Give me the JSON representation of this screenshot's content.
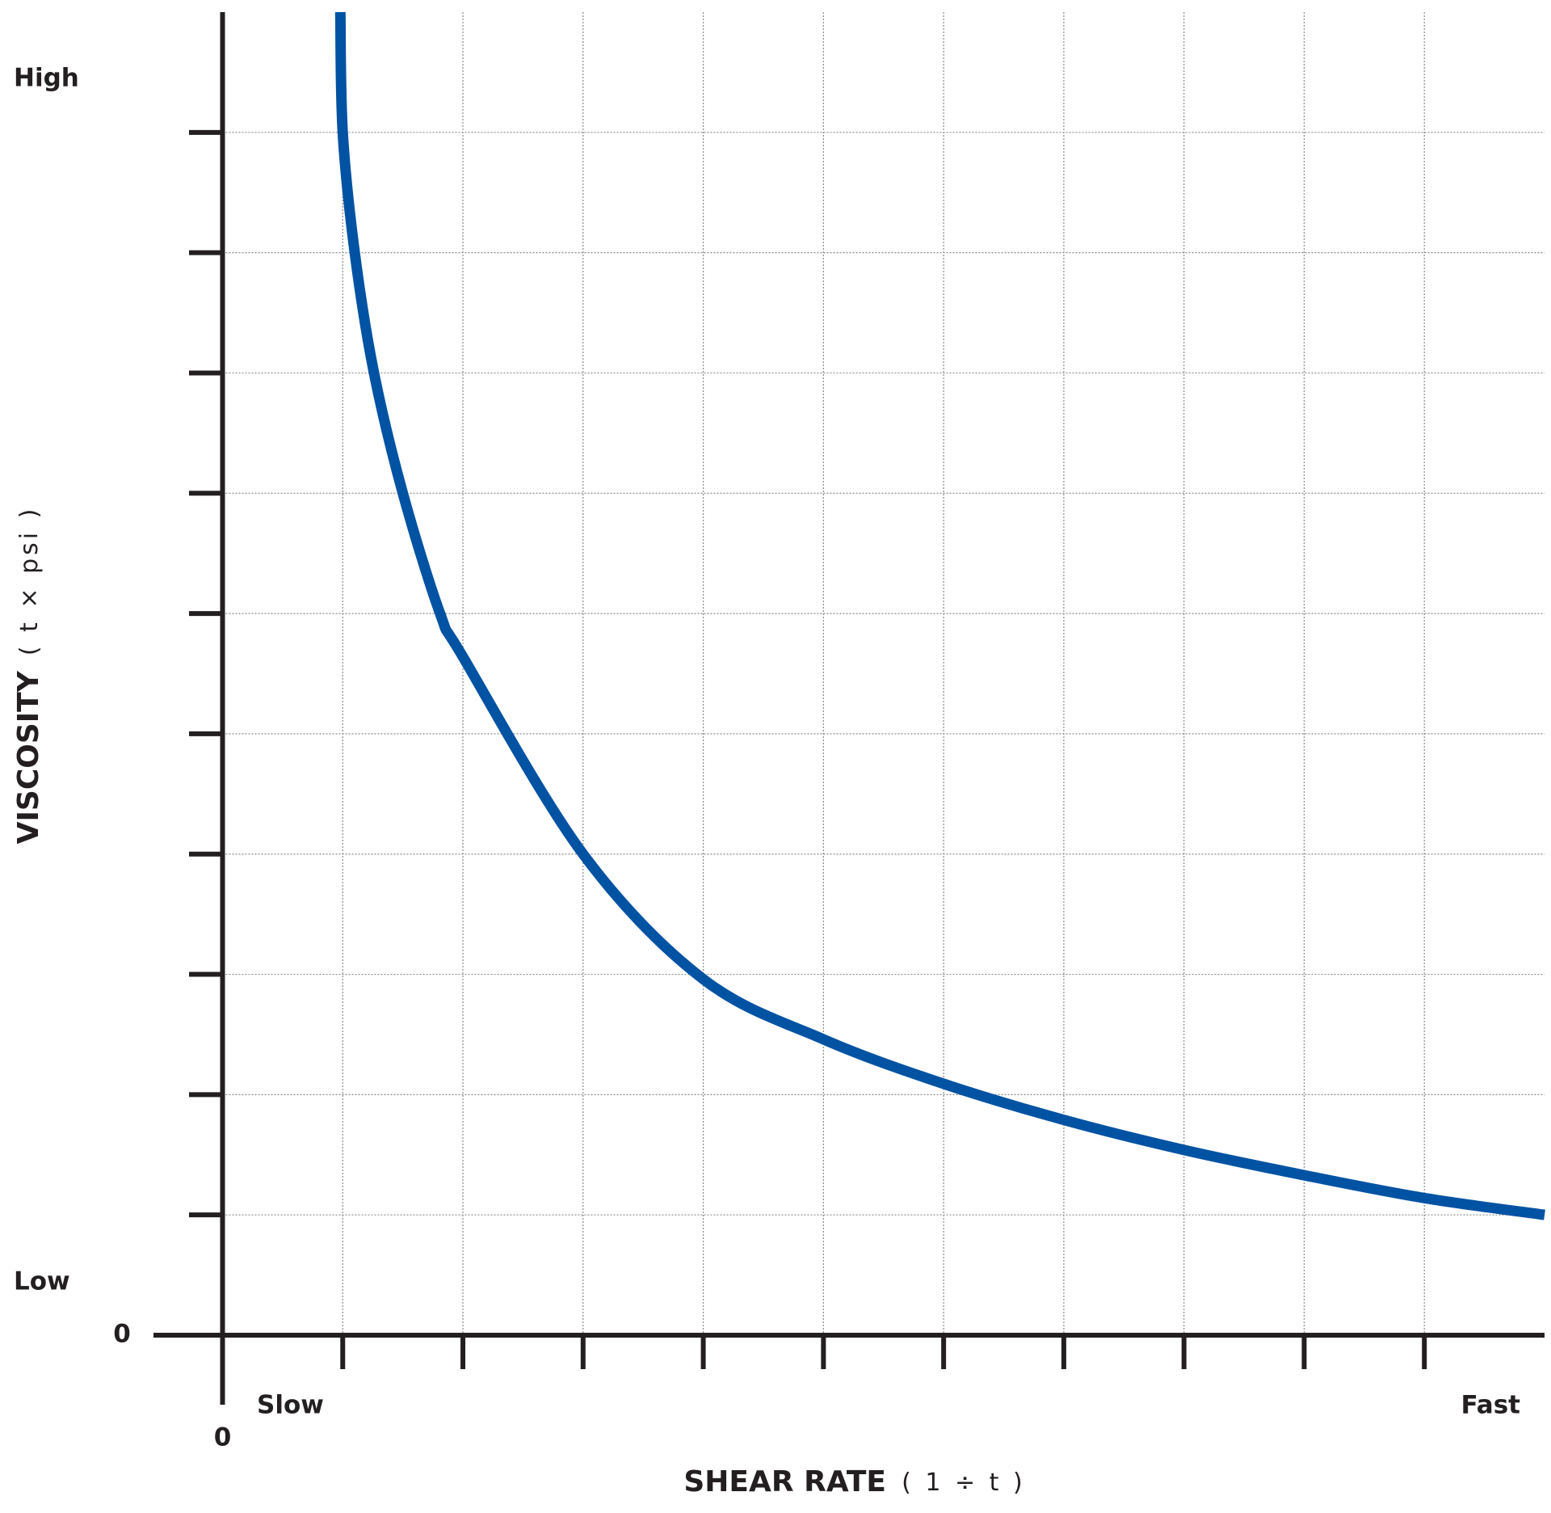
{
  "chart_data": {
    "type": "line",
    "x_label": "SHEAR RATE",
    "x_unit": "( 1 ÷ t )",
    "y_label": "VISCOSITY",
    "y_unit": "( t × psi )",
    "annotations": {
      "x_low": "Slow",
      "x_high": "Fast",
      "y_low": "Low",
      "y_high": "High"
    },
    "xlim": [
      0,
      11
    ],
    "ylim": [
      0,
      11
    ],
    "xticks": [
      0,
      {
        "value": 1,
        "label": null
      },
      {
        "value": 2,
        "label": null
      },
      {
        "value": 3,
        "label": null
      },
      {
        "value": 4,
        "label": null
      },
      {
        "value": 5,
        "label": null
      },
      {
        "value": 6,
        "label": null
      },
      {
        "value": 7,
        "label": null
      },
      {
        "value": 8,
        "label": null
      },
      {
        "value": 9,
        "label": null
      },
      {
        "value": 10,
        "label": null
      }
    ],
    "yticks": [
      0,
      {
        "value": 1,
        "label": null
      },
      {
        "value": 2,
        "label": null
      },
      {
        "value": 3,
        "label": null
      },
      {
        "value": 4,
        "label": null
      },
      {
        "value": 5,
        "label": null
      },
      {
        "value": 6,
        "label": null
      },
      {
        "value": 7,
        "label": null
      },
      {
        "value": 8,
        "label": null
      },
      {
        "value": 9,
        "label": null
      },
      {
        "value": 10,
        "label": null
      }
    ],
    "grid": true,
    "x": [
      0.98,
      1.0,
      1.1,
      1.26,
      1.5,
      1.81,
      2,
      3,
      4,
      5,
      6,
      7,
      8,
      9,
      10,
      11
    ],
    "series": [
      {
        "color": "#0052a3",
        "values": [
          11,
          10,
          9,
          8,
          7,
          6,
          5.64,
          4,
          2.96,
          2.46,
          2.09,
          1.79,
          1.54,
          1.33,
          1.14,
          1.0
        ]
      }
    ]
  }
}
